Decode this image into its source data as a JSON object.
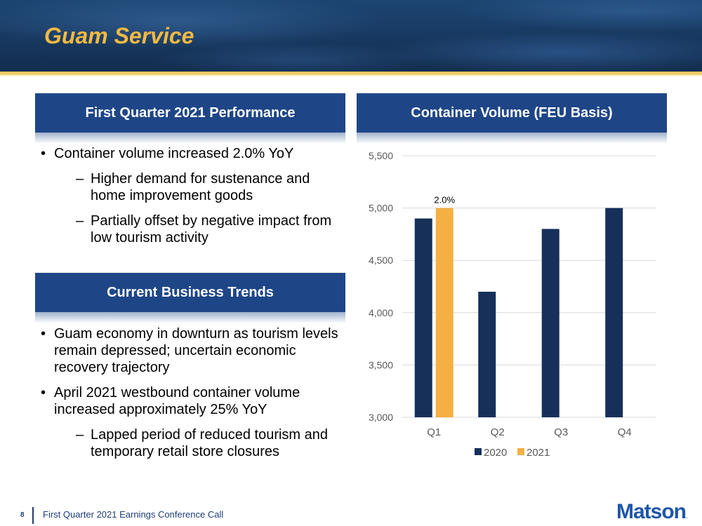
{
  "header": {
    "title": "Guam Service"
  },
  "left": {
    "performance": {
      "title": "First Quarter 2021 Performance",
      "bullets": [
        {
          "text": "Container volume increased 2.0% YoY",
          "subs": [
            "Higher demand for sustenance and home improvement goods",
            "Partially offset by negative impact from low tourism activity"
          ]
        }
      ]
    },
    "trends": {
      "title": "Current Business Trends",
      "bullets": [
        {
          "text": "Guam economy in downturn as tourism levels remain depressed; uncertain economic recovery trajectory",
          "subs": []
        },
        {
          "text": "April 2021 westbound container volume increased approximately 25% YoY",
          "subs": [
            "Lapped period of reduced tourism and temporary retail store closures"
          ]
        }
      ]
    }
  },
  "right": {
    "title": "Container Volume (FEU Basis)"
  },
  "chart_data": {
    "type": "bar",
    "title": "Container Volume (FEU Basis)",
    "xlabel": "",
    "ylabel": "",
    "categories": [
      "Q1",
      "Q2",
      "Q3",
      "Q4"
    ],
    "series": [
      {
        "name": "2020",
        "color": "#16305a",
        "values": [
          4900,
          4200,
          4800,
          5000
        ]
      },
      {
        "name": "2021",
        "color": "#f4b042",
        "values": [
          5000,
          null,
          null,
          null
        ]
      }
    ],
    "ylim": [
      3000,
      5500
    ],
    "yticks": [
      3000,
      3500,
      4000,
      4500,
      5000,
      5500
    ],
    "ytick_labels": [
      "3,000",
      "3,500",
      "4,000",
      "4,500",
      "5,000",
      "5,500"
    ],
    "grid": true,
    "legend": "bottom",
    "annotations": [
      {
        "category": "Q1",
        "series": "2021",
        "text": "2.0%"
      }
    ]
  },
  "footer": {
    "page_number": "8",
    "text": "First Quarter 2021 Earnings Conference Call",
    "logo": "Matson",
    "logo_mark": "."
  },
  "colors": {
    "title_gold": "#f4b942",
    "header_blue": "#1e4687",
    "bar_2020": "#16305a",
    "bar_2021": "#f4b042"
  }
}
